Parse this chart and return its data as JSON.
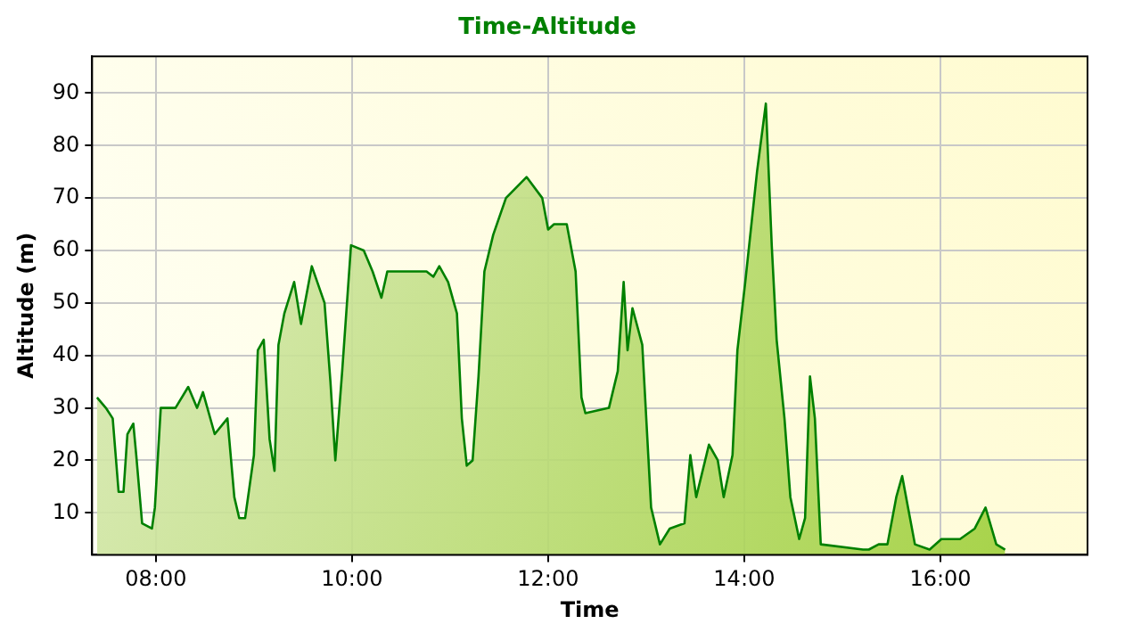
{
  "chart_data": {
    "type": "area",
    "title": "Time-Altitude",
    "xlabel": "Time",
    "ylabel": "Altitude (m)",
    "xlim": [
      7.35,
      17.5
    ],
    "xticks": [
      {
        "value": 8,
        "label": "08:00"
      },
      {
        "value": 10,
        "label": "10:00"
      },
      {
        "value": 12,
        "label": "12:00"
      },
      {
        "value": 14,
        "label": "14:00"
      },
      {
        "value": 16,
        "label": "16:00"
      }
    ],
    "ylim": [
      2,
      97
    ],
    "yticks": [
      10,
      20,
      30,
      40,
      50,
      60,
      70,
      80,
      90
    ],
    "grid": true,
    "legend": false,
    "series": [
      {
        "color": "#008000",
        "x": [
          7.4,
          7.49,
          7.56,
          7.62,
          7.67,
          7.71,
          7.77,
          7.8,
          7.86,
          7.96,
          7.99,
          8.05,
          8.2,
          8.33,
          8.42,
          8.48,
          8.6,
          8.73,
          8.8,
          8.85,
          8.91,
          9.0,
          9.04,
          9.1,
          9.16,
          9.21,
          9.25,
          9.31,
          9.41,
          9.48,
          9.59,
          9.72,
          9.78,
          9.83,
          9.9,
          9.99,
          10.12,
          10.21,
          10.3,
          10.36,
          10.76,
          10.83,
          10.89,
          10.98,
          11.07,
          11.12,
          11.17,
          11.23,
          11.29,
          11.35,
          11.44,
          11.57,
          11.78,
          11.94,
          12.0,
          12.06,
          12.19,
          12.28,
          12.34,
          12.38,
          12.62,
          12.71,
          12.77,
          12.81,
          12.86,
          12.96,
          13.05,
          13.14,
          13.24,
          13.39,
          13.45,
          13.51,
          13.64,
          13.73,
          13.79,
          13.88,
          13.93,
          14.01,
          14.13,
          14.22,
          14.28,
          14.33,
          14.41,
          14.47,
          14.56,
          14.62,
          14.67,
          14.72,
          14.78,
          15.21,
          15.27,
          15.37,
          15.46,
          15.55,
          15.61,
          15.67,
          15.74,
          15.89,
          16.01,
          16.2,
          16.35,
          16.46,
          16.57,
          16.66
        ],
        "values": [
          32,
          30,
          28,
          14,
          14,
          25,
          27,
          21,
          8,
          7,
          11,
          30,
          30,
          34,
          30,
          33,
          25,
          28,
          13,
          9,
          9,
          21,
          41,
          43,
          24,
          18,
          42,
          48,
          54,
          46,
          57,
          50,
          35,
          20,
          37,
          61,
          60,
          56,
          51,
          56,
          56,
          55,
          57,
          54,
          48,
          28,
          19,
          20,
          36,
          56,
          63,
          70,
          74,
          70,
          64,
          65,
          65,
          56,
          32,
          29,
          30,
          37,
          54,
          41,
          49,
          42,
          11,
          4,
          7,
          8,
          21,
          13,
          23,
          20,
          13,
          21,
          41,
          54,
          75,
          88,
          61,
          43,
          28,
          13,
          5,
          9,
          36,
          28,
          4,
          3,
          3,
          4,
          4,
          13,
          17,
          11,
          4,
          3,
          5,
          5,
          7,
          11,
          4,
          3
        ]
      }
    ]
  }
}
